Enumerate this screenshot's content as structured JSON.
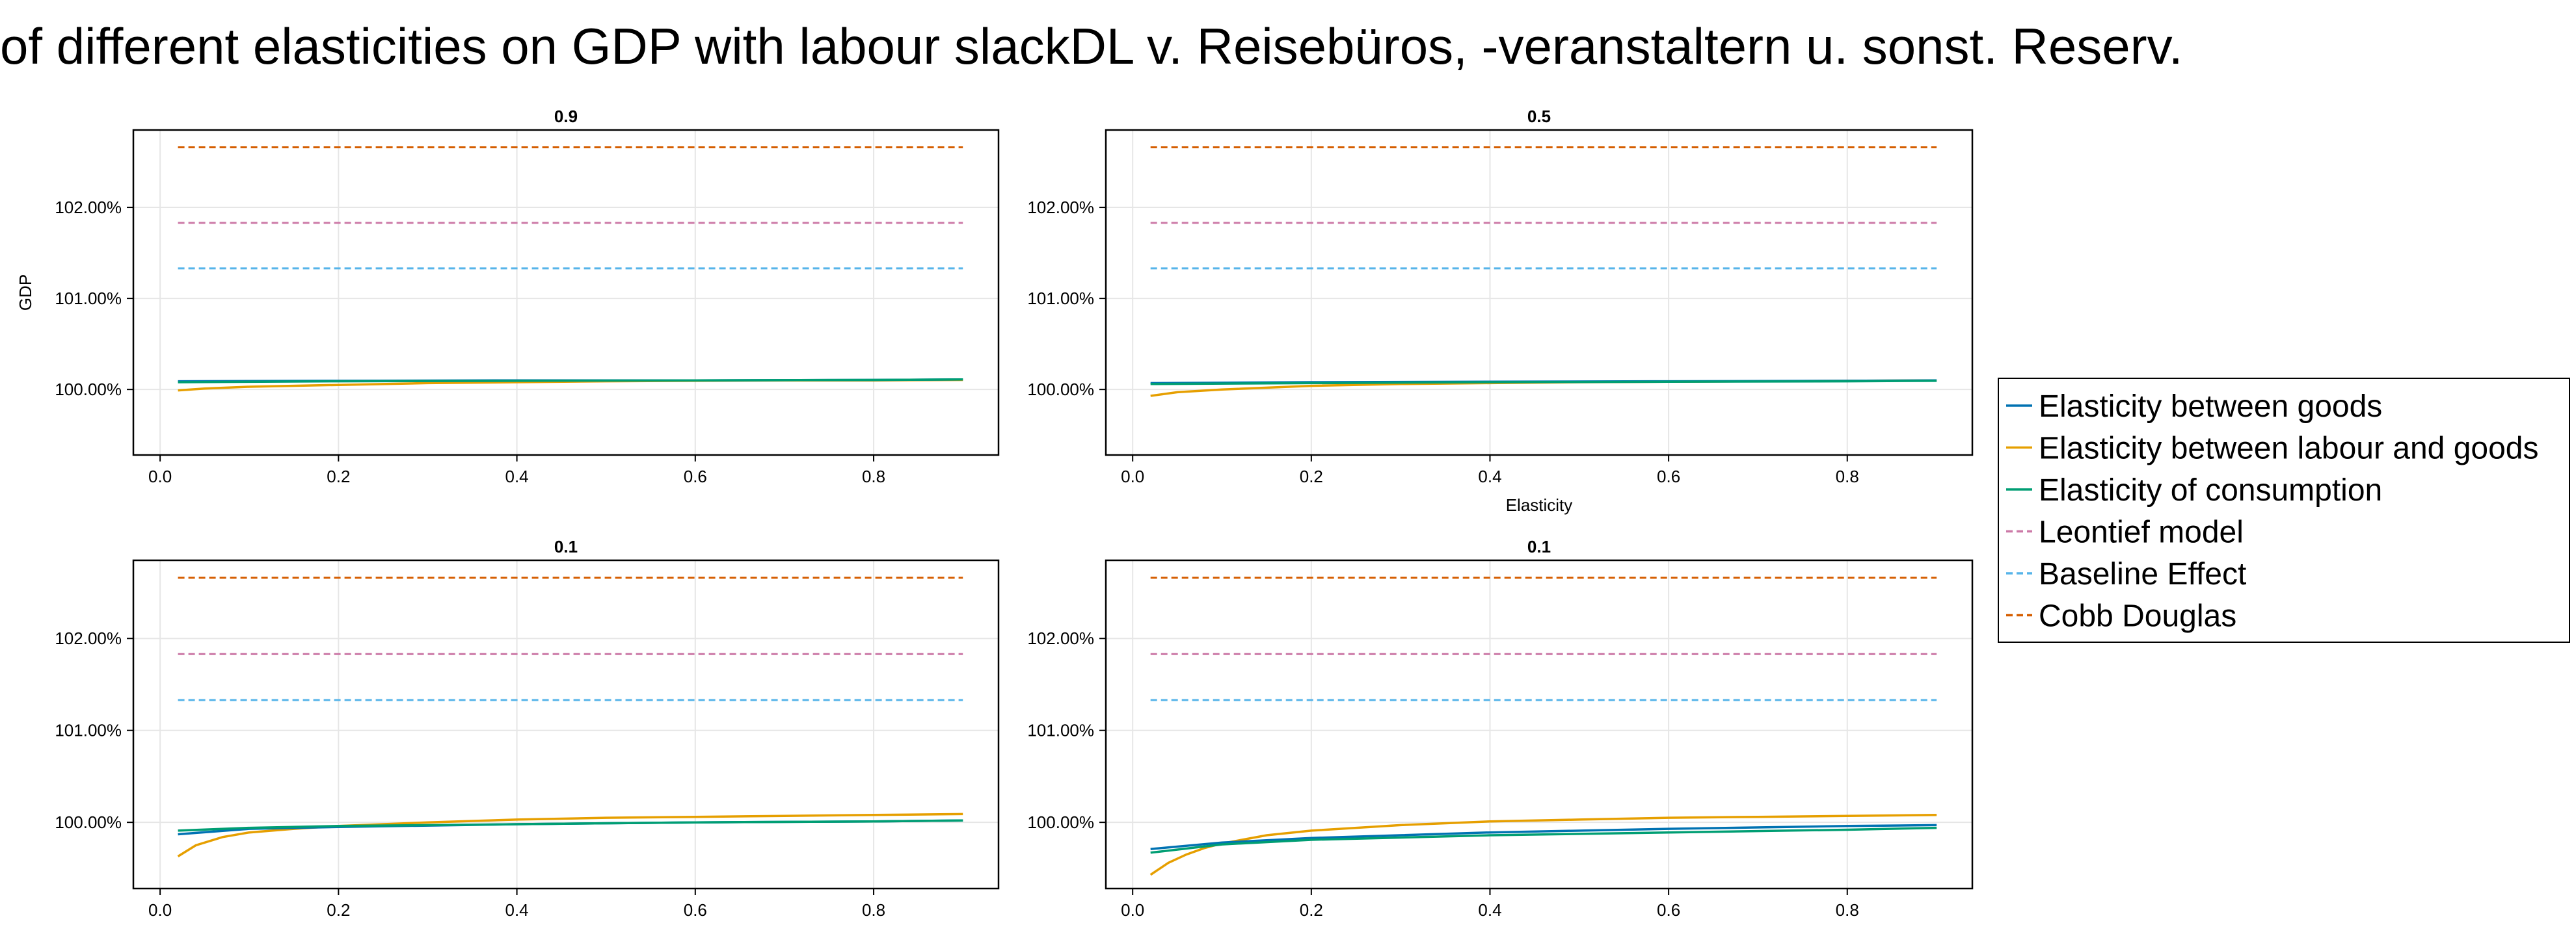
{
  "title": "of different elasticities on GDP with labour slackDL v. Reisebüros, -veranstaltern u. sonst. Reserv.",
  "chart_data": {
    "type": "line",
    "shared": {
      "x_ticks": [
        0.0,
        0.2,
        0.4,
        0.6,
        0.8
      ],
      "x_tick_labels": [
        "0.0",
        "0.2",
        "0.4",
        "0.6",
        "0.8"
      ],
      "xlim": [
        -0.03,
        0.94
      ],
      "y_ticks": [
        100.0,
        101.0,
        102.0
      ],
      "y_tick_labels": [
        "100.00%",
        "101.00%",
        "102.00%"
      ],
      "ylim": [
        99.28,
        102.85
      ],
      "grid": true,
      "legend_position": "right",
      "colors": {
        "Elasticity between goods": "#0072b2",
        "Elasticity between labour and goods": "#e69f00",
        "Elasticity of consumption": "#009e73",
        "Leontief model": "#cc79a7",
        "Baseline Effect": "#56b4e9",
        "Cobb Douglas": "#d55e00"
      },
      "legend": [
        {
          "name": "Elasticity between goods",
          "dashed": false
        },
        {
          "name": "Elasticity between labour and goods",
          "dashed": false
        },
        {
          "name": "Elasticity of consumption",
          "dashed": false
        },
        {
          "name": "Leontief model",
          "dashed": true
        },
        {
          "name": "Baseline Effect",
          "dashed": true
        },
        {
          "name": "Cobb Douglas",
          "dashed": true
        }
      ]
    },
    "panels": [
      {
        "title": "0.9",
        "xlabel": "",
        "ylabel": "GDP",
        "series": [
          {
            "name": "Cobb Douglas",
            "x": [
              0.02,
              0.9
            ],
            "y": [
              102.66,
              102.66
            ]
          },
          {
            "name": "Leontief model",
            "x": [
              0.02,
              0.9
            ],
            "y": [
              101.83,
              101.83
            ]
          },
          {
            "name": "Baseline Effect",
            "x": [
              0.02,
              0.9
            ],
            "y": [
              101.33,
              101.33
            ]
          },
          {
            "name": "Elasticity between labour and goods",
            "x": [
              0.02,
              0.05,
              0.1,
              0.2,
              0.3,
              0.4,
              0.5,
              0.6,
              0.7,
              0.8,
              0.9
            ],
            "y": [
              99.99,
              100.01,
              100.03,
              100.05,
              100.07,
              100.08,
              100.09,
              100.095,
              100.1,
              100.1,
              100.105
            ]
          },
          {
            "name": "Elasticity between goods",
            "x": [
              0.02,
              0.2,
              0.4,
              0.6,
              0.8,
              0.9
            ],
            "y": [
              100.09,
              100.095,
              100.1,
              100.1,
              100.105,
              100.11
            ]
          },
          {
            "name": "Elasticity of consumption",
            "x": [
              0.02,
              0.2,
              0.4,
              0.6,
              0.8,
              0.9
            ],
            "y": [
              100.08,
              100.09,
              100.095,
              100.1,
              100.105,
              100.11
            ]
          }
        ]
      },
      {
        "title": "0.5",
        "xlabel": "Elasticity",
        "ylabel": "",
        "series": [
          {
            "name": "Cobb Douglas",
            "x": [
              0.02,
              0.9
            ],
            "y": [
              102.66,
              102.66
            ]
          },
          {
            "name": "Leontief model",
            "x": [
              0.02,
              0.9
            ],
            "y": [
              101.83,
              101.83
            ]
          },
          {
            "name": "Baseline Effect",
            "x": [
              0.02,
              0.9
            ],
            "y": [
              101.33,
              101.33
            ]
          },
          {
            "name": "Elasticity between labour and goods",
            "x": [
              0.02,
              0.05,
              0.1,
              0.2,
              0.3,
              0.4,
              0.5,
              0.6,
              0.7,
              0.8,
              0.9
            ],
            "y": [
              99.93,
              99.97,
              100.0,
              100.04,
              100.06,
              100.07,
              100.08,
              100.085,
              100.09,
              100.095,
              100.1
            ]
          },
          {
            "name": "Elasticity between goods",
            "x": [
              0.02,
              0.2,
              0.4,
              0.6,
              0.8,
              0.9
            ],
            "y": [
              100.07,
              100.08,
              100.085,
              100.09,
              100.095,
              100.1
            ]
          },
          {
            "name": "Elasticity of consumption",
            "x": [
              0.02,
              0.2,
              0.4,
              0.6,
              0.8,
              0.9
            ],
            "y": [
              100.06,
              100.07,
              100.08,
              100.085,
              100.09,
              100.095
            ]
          }
        ]
      },
      {
        "title": "0.1",
        "xlabel": "",
        "ylabel": "",
        "series": [
          {
            "name": "Cobb Douglas",
            "x": [
              0.02,
              0.9
            ],
            "y": [
              102.66,
              102.66
            ]
          },
          {
            "name": "Leontief model",
            "x": [
              0.02,
              0.9
            ],
            "y": [
              101.83,
              101.83
            ]
          },
          {
            "name": "Baseline Effect",
            "x": [
              0.02,
              0.9
            ],
            "y": [
              101.33,
              101.33
            ]
          },
          {
            "name": "Elasticity between labour and goods",
            "x": [
              0.02,
              0.04,
              0.07,
              0.1,
              0.15,
              0.2,
              0.3,
              0.4,
              0.5,
              0.6,
              0.7,
              0.8,
              0.9
            ],
            "y": [
              99.63,
              99.75,
              99.84,
              99.89,
              99.93,
              99.96,
              100.0,
              100.03,
              100.05,
              100.06,
              100.07,
              100.08,
              100.09
            ]
          },
          {
            "name": "Elasticity between goods",
            "x": [
              0.02,
              0.1,
              0.2,
              0.4,
              0.6,
              0.8,
              0.9
            ],
            "y": [
              99.87,
              99.93,
              99.95,
              99.98,
              100.0,
              100.01,
              100.02
            ]
          },
          {
            "name": "Elasticity of consumption",
            "x": [
              0.02,
              0.1,
              0.2,
              0.4,
              0.6,
              0.8,
              0.9
            ],
            "y": [
              99.91,
              99.94,
              99.96,
              99.98,
              100.0,
              100.01,
              100.02
            ]
          }
        ]
      },
      {
        "title": "0.1",
        "xlabel": "",
        "ylabel": "",
        "series": [
          {
            "name": "Cobb Douglas",
            "x": [
              0.02,
              0.9
            ],
            "y": [
              102.66,
              102.66
            ]
          },
          {
            "name": "Leontief model",
            "x": [
              0.02,
              0.9
            ],
            "y": [
              101.83,
              101.83
            ]
          },
          {
            "name": "Baseline Effect",
            "x": [
              0.02,
              0.9
            ],
            "y": [
              101.33,
              101.33
            ]
          },
          {
            "name": "Elasticity between labour and goods",
            "x": [
              0.02,
              0.04,
              0.06,
              0.08,
              0.1,
              0.15,
              0.2,
              0.3,
              0.4,
              0.5,
              0.6,
              0.7,
              0.8,
              0.9
            ],
            "y": [
              99.43,
              99.56,
              99.65,
              99.72,
              99.77,
              99.86,
              99.91,
              99.97,
              100.01,
              100.03,
              100.05,
              100.06,
              100.07,
              100.08
            ]
          },
          {
            "name": "Elasticity between goods",
            "x": [
              0.02,
              0.1,
              0.2,
              0.4,
              0.6,
              0.8,
              0.9
            ],
            "y": [
              99.71,
              99.78,
              99.83,
              99.89,
              99.93,
              99.96,
              99.97
            ]
          },
          {
            "name": "Elasticity of consumption",
            "x": [
              0.02,
              0.1,
              0.2,
              0.4,
              0.6,
              0.8,
              0.9
            ],
            "y": [
              99.67,
              99.76,
              99.81,
              99.86,
              99.89,
              99.92,
              99.94
            ]
          }
        ]
      }
    ]
  }
}
